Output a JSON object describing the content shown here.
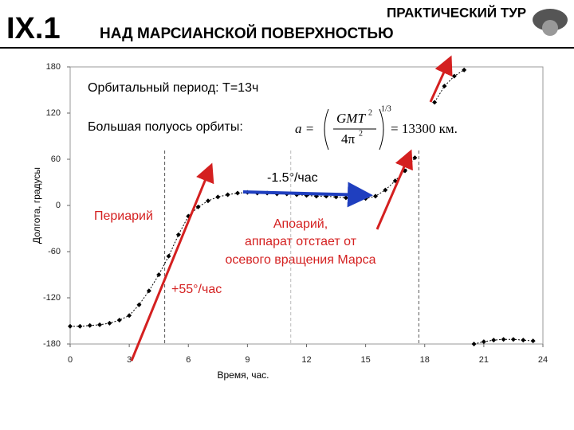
{
  "header": {
    "section": "IX.1",
    "tour": "ПРАКТИЧЕСКИЙ ТУР",
    "title": "НАД МАРСИАНСКОЙ ПОВЕРХНОСТЬЮ"
  },
  "chart_data": {
    "type": "line",
    "xlabel": "Время, час.",
    "ylabel": "Долгота, градусы",
    "x": [
      0,
      0.5,
      1,
      1.5,
      2,
      2.5,
      3,
      3.5,
      4,
      4.5,
      5,
      5.5,
      6,
      6.5,
      7,
      7.5,
      8,
      8.5,
      9,
      9.5,
      10,
      10.5,
      11,
      11.5,
      12,
      12.5,
      13,
      13.5,
      14,
      14.5,
      15,
      15.5,
      16,
      16.5,
      17,
      17.5,
      18,
      18.5,
      19,
      19.5,
      20,
      20.25,
      20.5,
      21,
      21.5,
      22,
      22.5,
      23,
      23.5
    ],
    "series": [
      {
        "color": "#000000",
        "values": [
          -157,
          -157,
          -156,
          -155,
          -153,
          -149,
          -143,
          -129,
          -111,
          -90,
          -66,
          -38,
          -14,
          -2,
          6,
          11,
          14,
          16,
          17,
          16,
          16,
          15,
          15,
          14,
          13,
          12,
          12,
          11,
          10,
          10,
          9,
          12,
          20,
          32,
          45,
          62,
          null,
          134,
          155,
          168,
          176,
          null,
          -180,
          -177,
          -175,
          -174,
          -174,
          -175,
          -176
        ]
      }
    ],
    "vlines": [
      4.8,
      11.2,
      17.7
    ],
    "xlim": [
      0,
      24
    ],
    "xticks": [
      0,
      3,
      6,
      9,
      12,
      15,
      18,
      21,
      24
    ],
    "ylim": [
      -180,
      180
    ],
    "yticks": [
      -180,
      -120,
      -60,
      0,
      60,
      120,
      180
    ],
    "annotations": {
      "period": "Орбитальный период: T=13ч",
      "axis": "Большая полуось орбиты:",
      "f_a": "a =",
      "f_num": "GMT",
      "f_num_exp": "2",
      "f_den": "4π",
      "f_den_exp": "2",
      "f_pow": "1/3",
      "f_result": "= 13300 км.",
      "slope_apo": "-1.5°/час",
      "peri": "Периарий",
      "apo1": "Апоарий,",
      "apo2": "аппарат отстает от",
      "apo3": "осевого вращения Марса",
      "slope_peri": "+55°/час"
    }
  }
}
